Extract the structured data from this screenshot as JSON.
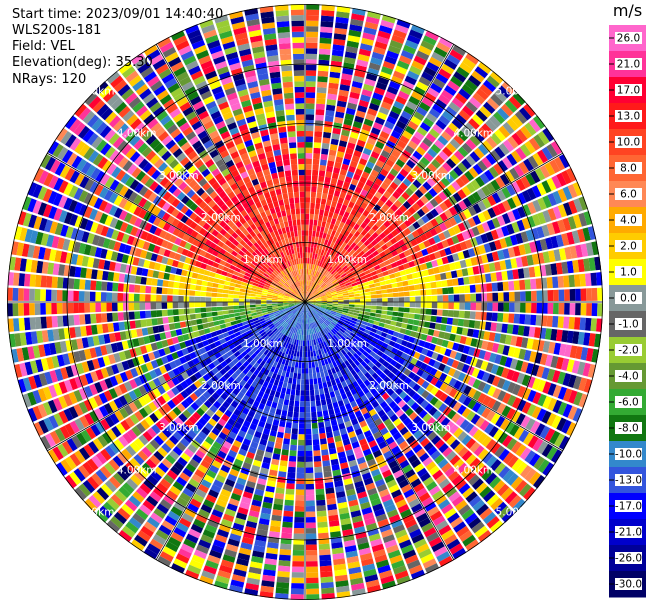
{
  "header": {
    "start_time": "Start time: 2023/09/01 14:40:40",
    "instrument": "WLS200s-181",
    "field": "Field: VEL",
    "elevation": "Elevation(deg): 35.30",
    "nrays": "NRays: 120"
  },
  "chart_data": {
    "type": "heatmap",
    "projection": "polar PPI",
    "field": "VEL",
    "n_rays": 120,
    "elevation_deg": 35.3,
    "range_ring_labels": [
      "1.00km",
      "2.00km",
      "3.00km",
      "4.00km",
      "5.00km"
    ],
    "colorbar": {
      "unit": "m/s",
      "ticks": [
        "26.0",
        "21.0",
        "17.0",
        "13.0",
        "10.0",
        "8.0",
        "6.0",
        "4.0",
        "2.0",
        "1.0",
        "0.0",
        "-1.0",
        "-2.0",
        "-4.0",
        "-6.0",
        "-8.0",
        "-10.0",
        "-13.0",
        "-17.0",
        "-21.0",
        "-26.0",
        "-30.0"
      ],
      "colors": [
        "#ff66cc",
        "#ff3399",
        "#ff0033",
        "#ff1a1a",
        "#ff4422",
        "#ff6633",
        "#ff8855",
        "#ffaa00",
        "#ffcc00",
        "#ffff00",
        "#889999",
        "#666666",
        "#99cc33",
        "#669933",
        "#33aa33",
        "#117711",
        "#3388cc",
        "#3355dd",
        "#0000ff",
        "#0000cc",
        "#000099",
        "#000066"
      ]
    },
    "pattern_summary": "Inner ~2 km: positive velocities (warm colors) in the north half, negative (blue) in the south half; outer ranges dominated by noise."
  }
}
